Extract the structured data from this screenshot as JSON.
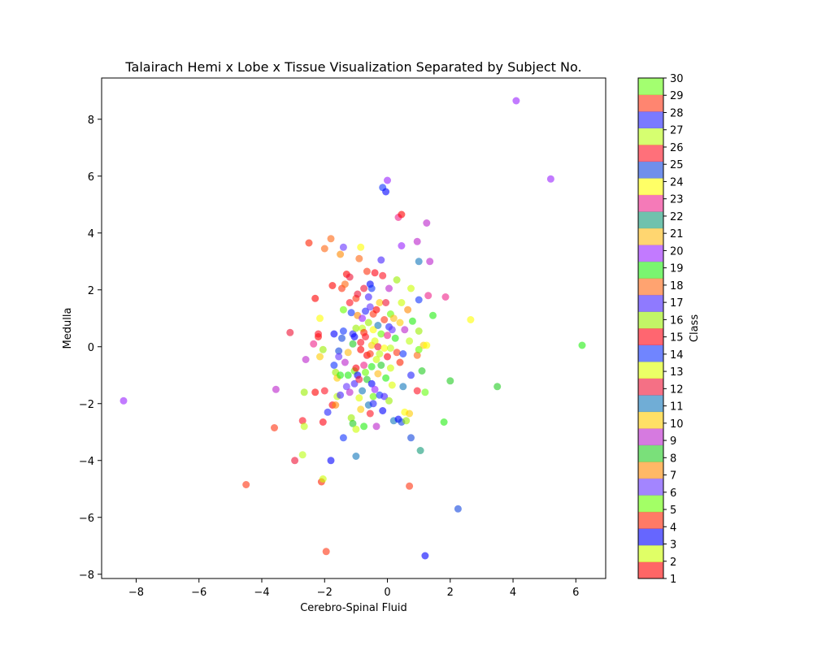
{
  "chart_data": {
    "type": "scatter",
    "title": "Talairach Hemi x Lobe x Tissue Visualization Separated by Subject No.",
    "xlabel": "Cerebro-Spinal Fluid",
    "ylabel": "Medulla",
    "xlim": [
      -9.1,
      6.95
    ],
    "ylim": [
      -8.15,
      9.45
    ],
    "xticks": [
      -8,
      -6,
      -4,
      -2,
      0,
      2,
      4,
      6
    ],
    "yticks": [
      -8,
      -6,
      -4,
      -2,
      0,
      2,
      4,
      6,
      8
    ],
    "grid": false,
    "colorbar": {
      "label": "Class",
      "range": [
        1,
        30
      ],
      "ticks": [
        1,
        2,
        3,
        4,
        5,
        6,
        7,
        8,
        9,
        10,
        11,
        12,
        13,
        14,
        15,
        16,
        17,
        18,
        19,
        20,
        21,
        22,
        23,
        24,
        25,
        26,
        27,
        28,
        29,
        30
      ],
      "colors": [
        "#ff0000",
        "#ccff00",
        "#0000ff",
        "#ff2200",
        "#66ff00",
        "#6633ff",
        "#ff8800",
        "#22cc22",
        "#bb22cc",
        "#ffcc00",
        "#1177bb",
        "#ee1133",
        "#ddff00",
        "#1133ff",
        "#ff0011",
        "#99ee00",
        "#4422ff",
        "#ff6611",
        "#22ee11",
        "#9922ff",
        "#ffbb11",
        "#119977",
        "#ee2288",
        "#ffff00",
        "#1144dd",
        "#ff1122",
        "#bbff11",
        "#2222ff",
        "#ff3311",
        "#66ff11"
      ]
    },
    "points": [
      {
        "x": -8.4,
        "y": -1.9,
        "c": 20
      },
      {
        "x": -4.5,
        "y": -4.85,
        "c": 29
      },
      {
        "x": -3.6,
        "y": -2.85,
        "c": 29
      },
      {
        "x": -3.55,
        "y": -1.5,
        "c": 9
      },
      {
        "x": -3.1,
        "y": 0.5,
        "c": 12
      },
      {
        "x": -2.95,
        "y": -4.0,
        "c": 12
      },
      {
        "x": -2.7,
        "y": -3.8,
        "c": 27
      },
      {
        "x": -2.7,
        "y": -2.6,
        "c": 26
      },
      {
        "x": -2.65,
        "y": -2.8,
        "c": 27
      },
      {
        "x": -2.65,
        "y": -1.6,
        "c": 16
      },
      {
        "x": -2.6,
        "y": -0.45,
        "c": 9
      },
      {
        "x": -2.5,
        "y": 3.65,
        "c": 4
      },
      {
        "x": -2.35,
        "y": 0.1,
        "c": 23
      },
      {
        "x": -2.3,
        "y": -1.6,
        "c": 1
      },
      {
        "x": -2.3,
        "y": 1.7,
        "c": 1
      },
      {
        "x": -2.2,
        "y": 0.35,
        "c": 1
      },
      {
        "x": -2.2,
        "y": 0.45,
        "c": 26
      },
      {
        "x": -2.15,
        "y": 1.0,
        "c": 24
      },
      {
        "x": -2.15,
        "y": -0.35,
        "c": 10
      },
      {
        "x": -2.1,
        "y": -4.75,
        "c": 4
      },
      {
        "x": -2.05,
        "y": -4.65,
        "c": 2
      },
      {
        "x": -2.05,
        "y": -2.65,
        "c": 15
      },
      {
        "x": -2.05,
        "y": -0.1,
        "c": 16
      },
      {
        "x": -2.0,
        "y": -1.55,
        "c": 26
      },
      {
        "x": -2.0,
        "y": 3.45,
        "c": 18
      },
      {
        "x": -1.95,
        "y": -7.2,
        "c": 29
      },
      {
        "x": -1.9,
        "y": -2.3,
        "c": 28
      },
      {
        "x": -1.8,
        "y": -4.0,
        "c": 3
      },
      {
        "x": -1.8,
        "y": 3.8,
        "c": 18
      },
      {
        "x": -1.75,
        "y": -2.05,
        "c": 15
      },
      {
        "x": -1.75,
        "y": 2.15,
        "c": 1
      },
      {
        "x": -1.7,
        "y": -0.65,
        "c": 14
      },
      {
        "x": -1.7,
        "y": 0.45,
        "c": 3
      },
      {
        "x": -1.65,
        "y": -2.05,
        "c": 7
      },
      {
        "x": -1.65,
        "y": -0.9,
        "c": 16
      },
      {
        "x": -1.6,
        "y": -1.75,
        "c": 27
      },
      {
        "x": -1.6,
        "y": -1.1,
        "c": 10
      },
      {
        "x": -1.55,
        "y": -0.15,
        "c": 25
      },
      {
        "x": -1.55,
        "y": -0.35,
        "c": 6
      },
      {
        "x": -1.5,
        "y": 3.25,
        "c": 7
      },
      {
        "x": -1.5,
        "y": -1.7,
        "c": 17
      },
      {
        "x": -1.5,
        "y": -1.0,
        "c": 19
      },
      {
        "x": -1.45,
        "y": 0.3,
        "c": 25
      },
      {
        "x": -1.45,
        "y": 2.05,
        "c": 29
      },
      {
        "x": -1.4,
        "y": -3.2,
        "c": 14
      },
      {
        "x": -1.4,
        "y": 0.55,
        "c": 14
      },
      {
        "x": -1.4,
        "y": 3.5,
        "c": 6
      },
      {
        "x": -1.4,
        "y": 1.3,
        "c": 5
      },
      {
        "x": -1.35,
        "y": 2.2,
        "c": 18
      },
      {
        "x": -1.35,
        "y": -0.55,
        "c": 9
      },
      {
        "x": -1.3,
        "y": 2.55,
        "c": 1
      },
      {
        "x": -1.3,
        "y": -1.4,
        "c": 6
      },
      {
        "x": -1.25,
        "y": -0.2,
        "c": 21
      },
      {
        "x": -1.25,
        "y": -1.0,
        "c": 19
      },
      {
        "x": -1.2,
        "y": 1.55,
        "c": 26
      },
      {
        "x": -1.2,
        "y": 2.45,
        "c": 12
      },
      {
        "x": -1.2,
        "y": -1.6,
        "c": 9
      },
      {
        "x": -1.15,
        "y": -2.5,
        "c": 16
      },
      {
        "x": -1.15,
        "y": 1.2,
        "c": 14
      },
      {
        "x": -1.1,
        "y": -2.7,
        "c": 8
      },
      {
        "x": -1.1,
        "y": 0.45,
        "c": 28
      },
      {
        "x": -1.1,
        "y": 0.1,
        "c": 8
      },
      {
        "x": -1.05,
        "y": 0.35,
        "c": 3
      },
      {
        "x": -1.05,
        "y": -0.85,
        "c": 5
      },
      {
        "x": -1.05,
        "y": -1.3,
        "c": 17
      },
      {
        "x": -1.0,
        "y": -3.85,
        "c": 11
      },
      {
        "x": -1.0,
        "y": -2.9,
        "c": 2
      },
      {
        "x": -1.0,
        "y": 1.7,
        "c": 29
      },
      {
        "x": -1.0,
        "y": 0.65,
        "c": 16
      },
      {
        "x": -1.0,
        "y": -0.75,
        "c": 15
      },
      {
        "x": -0.95,
        "y": -1.0,
        "c": 3
      },
      {
        "x": -0.95,
        "y": 1.85,
        "c": 12
      },
      {
        "x": -0.95,
        "y": 1.1,
        "c": 7
      },
      {
        "x": -0.9,
        "y": -1.8,
        "c": 13
      },
      {
        "x": -0.9,
        "y": -1.15,
        "c": 12
      },
      {
        "x": -0.9,
        "y": 3.1,
        "c": 18
      },
      {
        "x": -0.85,
        "y": 3.5,
        "c": 24
      },
      {
        "x": -0.85,
        "y": -0.1,
        "c": 1
      },
      {
        "x": -0.85,
        "y": 0.15,
        "c": 26
      },
      {
        "x": -0.85,
        "y": -2.2,
        "c": 10
      },
      {
        "x": -0.8,
        "y": 0.65,
        "c": 27
      },
      {
        "x": -0.8,
        "y": -1.55,
        "c": 11
      },
      {
        "x": -0.8,
        "y": 1.0,
        "c": 20
      },
      {
        "x": -0.75,
        "y": -0.65,
        "c": 23
      },
      {
        "x": -0.75,
        "y": 2.05,
        "c": 12
      },
      {
        "x": -0.75,
        "y": -2.8,
        "c": 19
      },
      {
        "x": -0.75,
        "y": 0.5,
        "c": 4
      },
      {
        "x": -0.7,
        "y": 1.25,
        "c": 28
      },
      {
        "x": -0.7,
        "y": -0.9,
        "c": 5
      },
      {
        "x": -0.7,
        "y": 0.35,
        "c": 26
      },
      {
        "x": -0.65,
        "y": 2.65,
        "c": 29
      },
      {
        "x": -0.65,
        "y": -1.15,
        "c": 8
      },
      {
        "x": -0.65,
        "y": -0.3,
        "c": 1
      },
      {
        "x": -0.6,
        "y": 1.75,
        "c": 17
      },
      {
        "x": -0.6,
        "y": -2.05,
        "c": 11
      },
      {
        "x": -0.6,
        "y": 0.85,
        "c": 16
      },
      {
        "x": -0.55,
        "y": 2.2,
        "c": 3
      },
      {
        "x": -0.55,
        "y": -0.25,
        "c": 29
      },
      {
        "x": -0.55,
        "y": -2.35,
        "c": 26
      },
      {
        "x": -0.55,
        "y": 1.4,
        "c": 6
      },
      {
        "x": -0.5,
        "y": 2.05,
        "c": 14
      },
      {
        "x": -0.5,
        "y": -1.3,
        "c": 3
      },
      {
        "x": -0.5,
        "y": 0.05,
        "c": 10
      },
      {
        "x": -0.5,
        "y": -0.7,
        "c": 19
      },
      {
        "x": -0.45,
        "y": -2.0,
        "c": 28
      },
      {
        "x": -0.45,
        "y": 1.15,
        "c": 29
      },
      {
        "x": -0.45,
        "y": -1.75,
        "c": 5
      },
      {
        "x": -0.45,
        "y": 0.6,
        "c": 24
      },
      {
        "x": -0.4,
        "y": -1.5,
        "c": 20
      },
      {
        "x": -0.4,
        "y": 2.6,
        "c": 15
      },
      {
        "x": -0.4,
        "y": 0.2,
        "c": 13
      },
      {
        "x": -0.35,
        "y": -0.45,
        "c": 2
      },
      {
        "x": -0.35,
        "y": 1.3,
        "c": 1
      },
      {
        "x": -0.35,
        "y": -2.8,
        "c": 9
      },
      {
        "x": -0.3,
        "y": 0.0,
        "c": 12
      },
      {
        "x": -0.3,
        "y": -0.95,
        "c": 21
      },
      {
        "x": -0.3,
        "y": 0.75,
        "c": 11
      },
      {
        "x": -0.25,
        "y": -1.7,
        "c": 14
      },
      {
        "x": -0.25,
        "y": 1.55,
        "c": 10
      },
      {
        "x": -0.25,
        "y": -0.25,
        "c": 27
      },
      {
        "x": -0.2,
        "y": 3.05,
        "c": 17
      },
      {
        "x": -0.2,
        "y": -0.65,
        "c": 8
      },
      {
        "x": -0.2,
        "y": 0.45,
        "c": 5
      },
      {
        "x": -0.15,
        "y": 5.6,
        "c": 14
      },
      {
        "x": -0.15,
        "y": -2.25,
        "c": 3
      },
      {
        "x": -0.15,
        "y": 2.5,
        "c": 26
      },
      {
        "x": -0.1,
        "y": -1.75,
        "c": 17
      },
      {
        "x": -0.1,
        "y": 0.95,
        "c": 29
      },
      {
        "x": -0.1,
        "y": -0.05,
        "c": 24
      },
      {
        "x": -0.05,
        "y": 5.45,
        "c": 3
      },
      {
        "x": -0.05,
        "y": 1.55,
        "c": 12
      },
      {
        "x": -0.05,
        "y": -1.1,
        "c": 19
      },
      {
        "x": 0.0,
        "y": 5.85,
        "c": 20
      },
      {
        "x": 0.0,
        "y": 0.4,
        "c": 23
      },
      {
        "x": 0.0,
        "y": -0.35,
        "c": 15
      },
      {
        "x": 0.05,
        "y": 2.05,
        "c": 9
      },
      {
        "x": 0.05,
        "y": -1.9,
        "c": 16
      },
      {
        "x": 0.05,
        "y": 0.7,
        "c": 28
      },
      {
        "x": 0.1,
        "y": -0.75,
        "c": 2
      },
      {
        "x": 0.1,
        "y": 1.15,
        "c": 5
      },
      {
        "x": 0.1,
        "y": -0.05,
        "c": 27
      },
      {
        "x": 0.15,
        "y": -1.35,
        "c": 13
      },
      {
        "x": 0.15,
        "y": 0.6,
        "c": 6
      },
      {
        "x": 0.2,
        "y": -2.6,
        "c": 11
      },
      {
        "x": 0.2,
        "y": 1.0,
        "c": 21
      },
      {
        "x": 0.25,
        "y": 0.3,
        "c": 19
      },
      {
        "x": 0.3,
        "y": 2.35,
        "c": 16
      },
      {
        "x": 0.3,
        "y": -0.2,
        "c": 29
      },
      {
        "x": 0.35,
        "y": 4.55,
        "c": 23
      },
      {
        "x": 0.35,
        "y": -2.55,
        "c": 3
      },
      {
        "x": 0.4,
        "y": 0.85,
        "c": 10
      },
      {
        "x": 0.4,
        "y": -0.55,
        "c": 4
      },
      {
        "x": 0.45,
        "y": 4.65,
        "c": 1
      },
      {
        "x": 0.45,
        "y": 3.55,
        "c": 20
      },
      {
        "x": 0.45,
        "y": -2.65,
        "c": 25
      },
      {
        "x": 0.45,
        "y": 1.55,
        "c": 2
      },
      {
        "x": 0.5,
        "y": -1.4,
        "c": 11
      },
      {
        "x": 0.5,
        "y": -0.25,
        "c": 14
      },
      {
        "x": 0.55,
        "y": -2.3,
        "c": 24
      },
      {
        "x": 0.55,
        "y": 0.6,
        "c": 9
      },
      {
        "x": 0.6,
        "y": -2.6,
        "c": 16
      },
      {
        "x": 0.65,
        "y": 1.3,
        "c": 7
      },
      {
        "x": 0.7,
        "y": -4.9,
        "c": 29
      },
      {
        "x": 0.7,
        "y": -2.35,
        "c": 10
      },
      {
        "x": 0.7,
        "y": 0.2,
        "c": 27
      },
      {
        "x": 0.75,
        "y": 2.05,
        "c": 2
      },
      {
        "x": 0.75,
        "y": -1.0,
        "c": 28
      },
      {
        "x": 0.75,
        "y": -3.2,
        "c": 25
      },
      {
        "x": 0.8,
        "y": 0.9,
        "c": 19
      },
      {
        "x": 0.95,
        "y": 3.7,
        "c": 9
      },
      {
        "x": 0.95,
        "y": -1.55,
        "c": 26
      },
      {
        "x": 0.95,
        "y": -0.3,
        "c": 18
      },
      {
        "x": 1.0,
        "y": 3.0,
        "c": 11
      },
      {
        "x": 1.0,
        "y": 1.65,
        "c": 14
      },
      {
        "x": 1.0,
        "y": -0.1,
        "c": 5
      },
      {
        "x": 1.0,
        "y": 0.55,
        "c": 16
      },
      {
        "x": 1.05,
        "y": -3.65,
        "c": 22
      },
      {
        "x": 1.1,
        "y": -0.85,
        "c": 8
      },
      {
        "x": 1.15,
        "y": 0.05,
        "c": 10
      },
      {
        "x": 1.2,
        "y": -7.35,
        "c": 3
      },
      {
        "x": 1.2,
        "y": -1.6,
        "c": 30
      },
      {
        "x": 1.25,
        "y": 4.35,
        "c": 9
      },
      {
        "x": 1.25,
        "y": 0.05,
        "c": 24
      },
      {
        "x": 1.3,
        "y": 1.8,
        "c": 23
      },
      {
        "x": 1.35,
        "y": 3.0,
        "c": 9
      },
      {
        "x": 1.45,
        "y": 1.1,
        "c": 19
      },
      {
        "x": 1.8,
        "y": -2.65,
        "c": 19
      },
      {
        "x": 1.85,
        "y": 1.75,
        "c": 23
      },
      {
        "x": 2.0,
        "y": -1.2,
        "c": 8
      },
      {
        "x": 2.25,
        "y": -5.7,
        "c": 25
      },
      {
        "x": 2.65,
        "y": 0.95,
        "c": 24
      },
      {
        "x": 3.5,
        "y": -1.4,
        "c": 8
      },
      {
        "x": 4.1,
        "y": 8.65,
        "c": 20
      },
      {
        "x": 5.2,
        "y": 5.9,
        "c": 20
      },
      {
        "x": 6.2,
        "y": 0.05,
        "c": 19
      }
    ]
  }
}
